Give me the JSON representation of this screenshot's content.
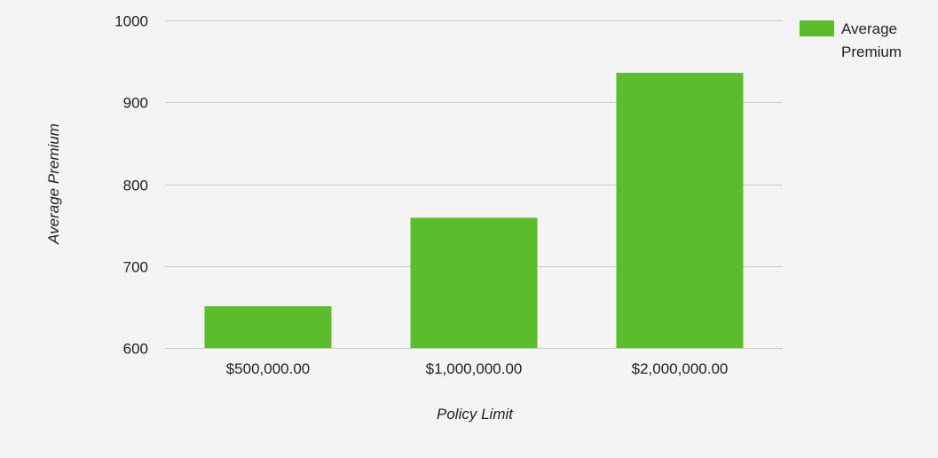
{
  "chart_data": {
    "type": "bar",
    "categories": [
      "$500,000.00",
      "$1,000,000.00",
      "$2,000,000.00"
    ],
    "series": [
      {
        "name": "Average Premium",
        "values": [
          651,
          759,
          936
        ],
        "color": "#5bbd2b"
      }
    ],
    "xlabel": "Policy Limit",
    "ylabel": "Average Premium",
    "ylim": [
      600,
      1000
    ],
    "yticks": [
      600,
      700,
      800,
      900,
      1000
    ],
    "grid": true,
    "legend_position": "top-right"
  },
  "legend": {
    "line1": "Average",
    "line2": "Premium"
  }
}
